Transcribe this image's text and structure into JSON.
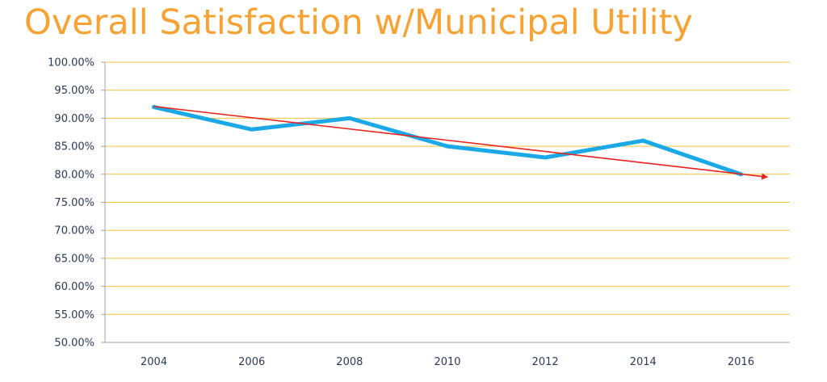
{
  "chart_data": {
    "type": "line",
    "title": "Overall Satisfaction w/Municipal Utility",
    "x": [
      "2004",
      "2006",
      "2008",
      "2010",
      "2012",
      "2014",
      "2016"
    ],
    "series": [
      {
        "values": [
          0.92,
          0.88,
          0.9,
          0.85,
          0.83,
          0.86,
          0.8
        ],
        "color": "#1aa9e6"
      }
    ],
    "trendline": {
      "start": 0.921,
      "end": 0.795,
      "color": "#e8231f"
    },
    "ylim": [
      0.5,
      1.0
    ],
    "yticks": [
      {
        "value": 1.0,
        "label": "100.00%"
      },
      {
        "value": 0.95,
        "label": "95.00%"
      },
      {
        "value": 0.9,
        "label": "90.00%"
      },
      {
        "value": 0.85,
        "label": "85.00%"
      },
      {
        "value": 0.8,
        "label": "80.00%"
      },
      {
        "value": 0.75,
        "label": "75.00%"
      },
      {
        "value": 0.7,
        "label": "70.00%"
      },
      {
        "value": 0.65,
        "label": "65.00%"
      },
      {
        "value": 0.6,
        "label": "60.00%"
      },
      {
        "value": 0.55,
        "label": "55.00%"
      },
      {
        "value": 0.5,
        "label": "50.00%"
      }
    ],
    "grid": true,
    "grid_color": "#f5c23a",
    "axis_color": "#9aa6b8",
    "title_color": "#f7a234"
  }
}
